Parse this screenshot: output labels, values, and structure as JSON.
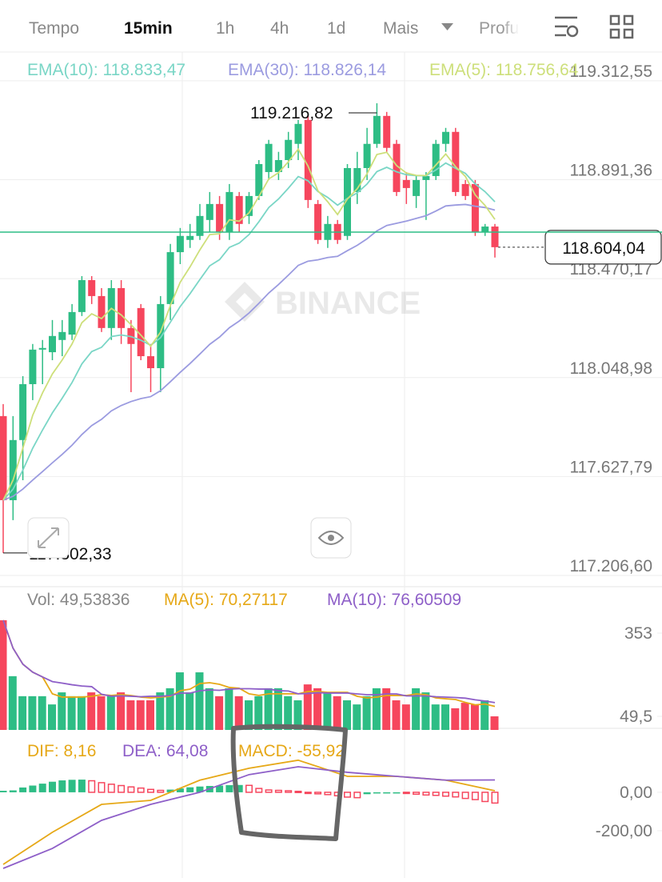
{
  "toolbar": {
    "tabs": [
      "Tempo",
      "15min",
      "1h",
      "4h",
      "1d",
      "Mais",
      "Profu"
    ]
  },
  "watermark": "BINANCE",
  "chart_data": [
    {
      "type": "candlestick",
      "legend": [
        "EMA(10): 118.833,47",
        "EMA(30): 118.826,14",
        "EMA(5): 118.756,64"
      ],
      "up_color": "#2ebd85",
      "down_color": "#f6465d",
      "ema_colors": [
        "#7ad6c6",
        "#9b9be0",
        "#cddf7a"
      ],
      "open": [
        117885,
        117527,
        117783,
        118021,
        118168,
        118157,
        118209,
        118232,
        118328,
        118464,
        118396,
        118260,
        118430,
        118260,
        118345,
        118140,
        118089,
        118362,
        118583,
        118635,
        118652,
        118720,
        118788,
        118669,
        118822,
        118737,
        118822,
        118924,
        118924,
        118975,
        119044,
        119146,
        118788,
        118635,
        118703,
        118652,
        118839,
        118941,
        119044,
        119163,
        119044,
        118890,
        118822,
        118890,
        118907,
        119044,
        119095,
        118873,
        118873,
        118669,
        118692
      ],
      "high": [
        117936,
        117885,
        118055,
        118192,
        118209,
        118294,
        118294,
        118362,
        118481,
        118481,
        118430,
        118464,
        118464,
        118294,
        118362,
        118192,
        118396,
        118618,
        118686,
        118703,
        118788,
        118839,
        118822,
        118873,
        118839,
        118839,
        118975,
        119061,
        119010,
        119095,
        119146,
        119163,
        118805,
        118737,
        118720,
        118958,
        119010,
        119112,
        119216.82,
        119180,
        119061,
        118924,
        118907,
        118924,
        119061,
        119112,
        119112,
        118890,
        118890,
        118703,
        118703
      ],
      "low": [
        117302.33,
        117442,
        117612,
        117953,
        118021,
        118123,
        118140,
        118209,
        118311,
        118362,
        118243,
        118209,
        118192,
        117987,
        118123,
        117987,
        117987,
        118294,
        118532,
        118601,
        118635,
        118669,
        118635,
        118635,
        118669,
        118703,
        118805,
        118890,
        118890,
        118941,
        118975,
        118771,
        118618,
        118601,
        118618,
        118635,
        118788,
        118890,
        119027,
        119010,
        118822,
        118788,
        118771,
        118720,
        118890,
        119010,
        118822,
        118805,
        118652,
        118652,
        118560
      ],
      "close": [
        117527,
        117783,
        118021,
        118168,
        118175,
        118226,
        118243,
        118328,
        118464,
        118396,
        118260,
        118430,
        118260,
        118192,
        118140,
        118089,
        118362,
        118583,
        118652,
        118652,
        118737,
        118788,
        118669,
        118839,
        118703,
        118822,
        118958,
        119044,
        118975,
        119061,
        119129,
        118805,
        118635,
        118703,
        118635,
        118941,
        118941,
        119044,
        119163,
        119027,
        118839,
        118856,
        118890,
        118907,
        119044,
        119095,
        118839,
        118822,
        118669,
        118692,
        118604.04
      ],
      "ylim": [
        117152,
        119435
      ],
      "yticks": [
        {
          "value": 119312.55,
          "label": "119.312,55"
        },
        {
          "value": 118891.36,
          "label": "118.891,36"
        },
        {
          "value": 118470.17,
          "label": "118.470,17"
        },
        {
          "value": 118048.98,
          "label": "118.048,98"
        },
        {
          "value": 117627.79,
          "label": "117.627,79"
        },
        {
          "value": 117206.6,
          "label": "117.206,60"
        }
      ],
      "max_label": {
        "value": 119216.82,
        "label": "119.216,82"
      },
      "min_label": {
        "value": 117302.33,
        "label": "117.302,33"
      },
      "last_label": {
        "value": 118604.04,
        "label": "118.604,04"
      },
      "grid": true
    },
    {
      "type": "bar",
      "legend": [
        "Vol: 49,53836",
        "MA(5): 70,27117",
        "MA(10): 76,60509"
      ],
      "legend_colors": [
        "#888888",
        "#e6a817",
        "#8e5fc8"
      ],
      "values": [
        400,
        196,
        123,
        123,
        123,
        93,
        137,
        123,
        123,
        137,
        123,
        123,
        137,
        108,
        108,
        108,
        137,
        152,
        210,
        137,
        210,
        152,
        123,
        152,
        123,
        108,
        123,
        152,
        152,
        123,
        108,
        166,
        152,
        137,
        123,
        108,
        93,
        123,
        152,
        152,
        108,
        93,
        152,
        137,
        93,
        93,
        79,
        99,
        93,
        108,
        49.53836
      ],
      "ylim": [
        0,
        429
      ],
      "yticks": [
        353,
        {
          "value": 49.5,
          "label": "49,5"
        }
      ]
    },
    {
      "type": "macd",
      "legend": [
        "DIF: 8,16",
        "DEA: 64,08",
        "MACD: -55,92"
      ],
      "legend_colors": [
        "#e6a817",
        "#8e5fc8",
        "#e6a817"
      ],
      "histogram": [
        8,
        10,
        25,
        35,
        45,
        55,
        62,
        65,
        66,
        60,
        50,
        42,
        35,
        28,
        22,
        15,
        10,
        14,
        20,
        26,
        30,
        33,
        35,
        37,
        38,
        36,
        20,
        12,
        10,
        8,
        5,
        -2,
        -8,
        -12,
        -18,
        -25,
        -28,
        -10,
        -6,
        -4,
        -3,
        -6,
        -10,
        -14,
        -16,
        -20,
        -24,
        -32,
        -38,
        -48,
        -55.92
      ],
      "dif": [
        -375,
        -208,
        -63,
        -42,
        63,
        125,
        167,
        83,
        83,
        63,
        8.16
      ],
      "dea": [
        -396,
        -292,
        -146,
        -63,
        0,
        92,
        133,
        104,
        83,
        63,
        64.08
      ],
      "ylim": [
        -446,
        312
      ],
      "yticks": [
        {
          "value": 0,
          "label": "0,00"
        },
        {
          "value": -200,
          "label": "-200,00"
        }
      ]
    }
  ]
}
